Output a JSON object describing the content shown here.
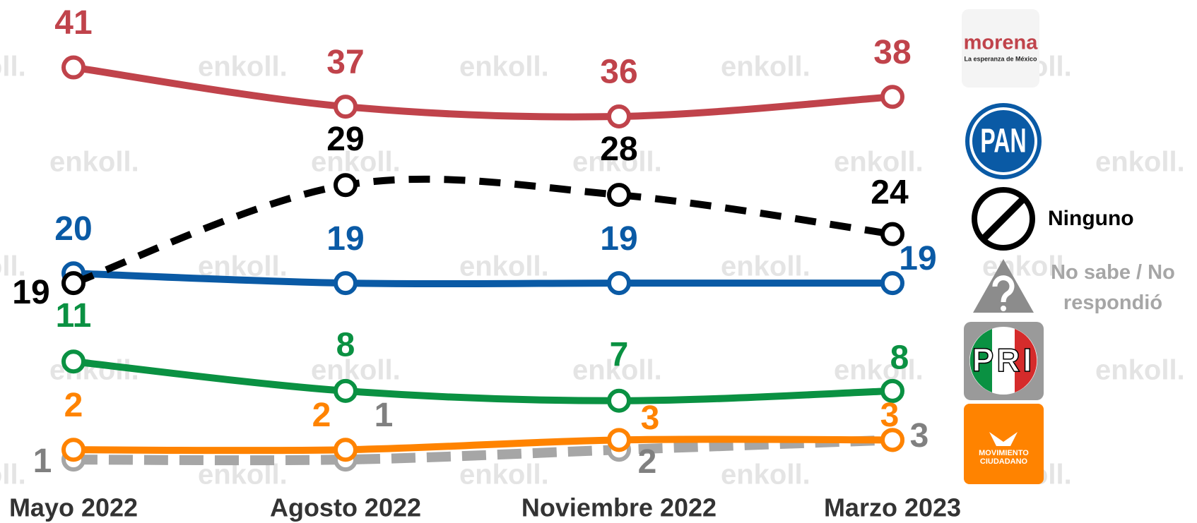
{
  "chart_data": {
    "type": "line",
    "watermark": "enkoll.",
    "categories": [
      "Mayo 2022",
      "Agosto 2022",
      "Noviembre 2022",
      "Marzo 2023"
    ],
    "ylim": [
      0,
      45
    ],
    "series": [
      {
        "name": "morena",
        "subtitle": "La esperanza de México",
        "color": "#c0434b",
        "values": [
          41,
          37,
          36,
          38
        ]
      },
      {
        "name": "PAN",
        "color": "#0a5aa5",
        "values": [
          20,
          19,
          19,
          19
        ]
      },
      {
        "name": "Ninguno",
        "color": "#000000",
        "dashed": true,
        "values": [
          19,
          29,
          28,
          24
        ]
      },
      {
        "name": "No sabe / No respondió",
        "color": "#a6a6a6",
        "dashed": true,
        "values": [
          1,
          1,
          2,
          3
        ]
      },
      {
        "name": "PRI",
        "color": "#0a9142",
        "values": [
          11,
          8,
          7,
          8
        ]
      },
      {
        "name": "MOVIMIENTO CIUDADANO",
        "color": "#ff8300",
        "values": [
          2,
          2,
          3,
          3
        ]
      }
    ]
  }
}
